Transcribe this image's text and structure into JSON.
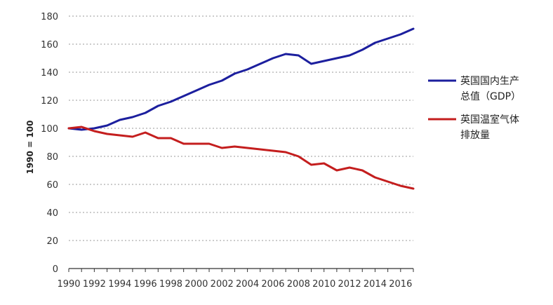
{
  "chart_data": {
    "type": "line",
    "title": "",
    "xlabel": "",
    "ylabel": "1990 = 100",
    "xlim": [
      1990,
      2017
    ],
    "ylim": [
      0,
      180
    ],
    "yticks": [
      0,
      20,
      40,
      60,
      80,
      100,
      120,
      140,
      160,
      180
    ],
    "xticks": [
      1990,
      1992,
      1994,
      1996,
      1998,
      2000,
      2002,
      2004,
      2006,
      2008,
      2010,
      2012,
      2014,
      2016
    ],
    "grid": "horizontal dashed",
    "legend_position": "right",
    "x": [
      1990,
      1991,
      1992,
      1993,
      1994,
      1995,
      1996,
      1997,
      1998,
      1999,
      2000,
      2001,
      2002,
      2003,
      2004,
      2005,
      2006,
      2007,
      2008,
      2009,
      2010,
      2011,
      2012,
      2013,
      2014,
      2015,
      2016,
      2017
    ],
    "series": [
      {
        "name": "英国国内生产总值（GDP）",
        "legend_lines": [
          "英国国内生产",
          "总值（GDP）"
        ],
        "color": "#1c1f9e",
        "values": [
          100,
          99,
          100,
          102,
          106,
          108,
          111,
          116,
          119,
          123,
          127,
          131,
          134,
          139,
          142,
          146,
          150,
          153,
          152,
          146,
          148,
          150,
          152,
          156,
          161,
          164,
          167,
          171
        ]
      },
      {
        "name": "英国温室气体排放量",
        "legend_lines": [
          "英国温室气体",
          "排放量"
        ],
        "color": "#c41e1e",
        "values": [
          100,
          101,
          98,
          96,
          95,
          94,
          97,
          93,
          93,
          89,
          89,
          89,
          86,
          87,
          86,
          85,
          84,
          83,
          80,
          74,
          75,
          70,
          72,
          70,
          65,
          62,
          59,
          57
        ]
      }
    ]
  }
}
